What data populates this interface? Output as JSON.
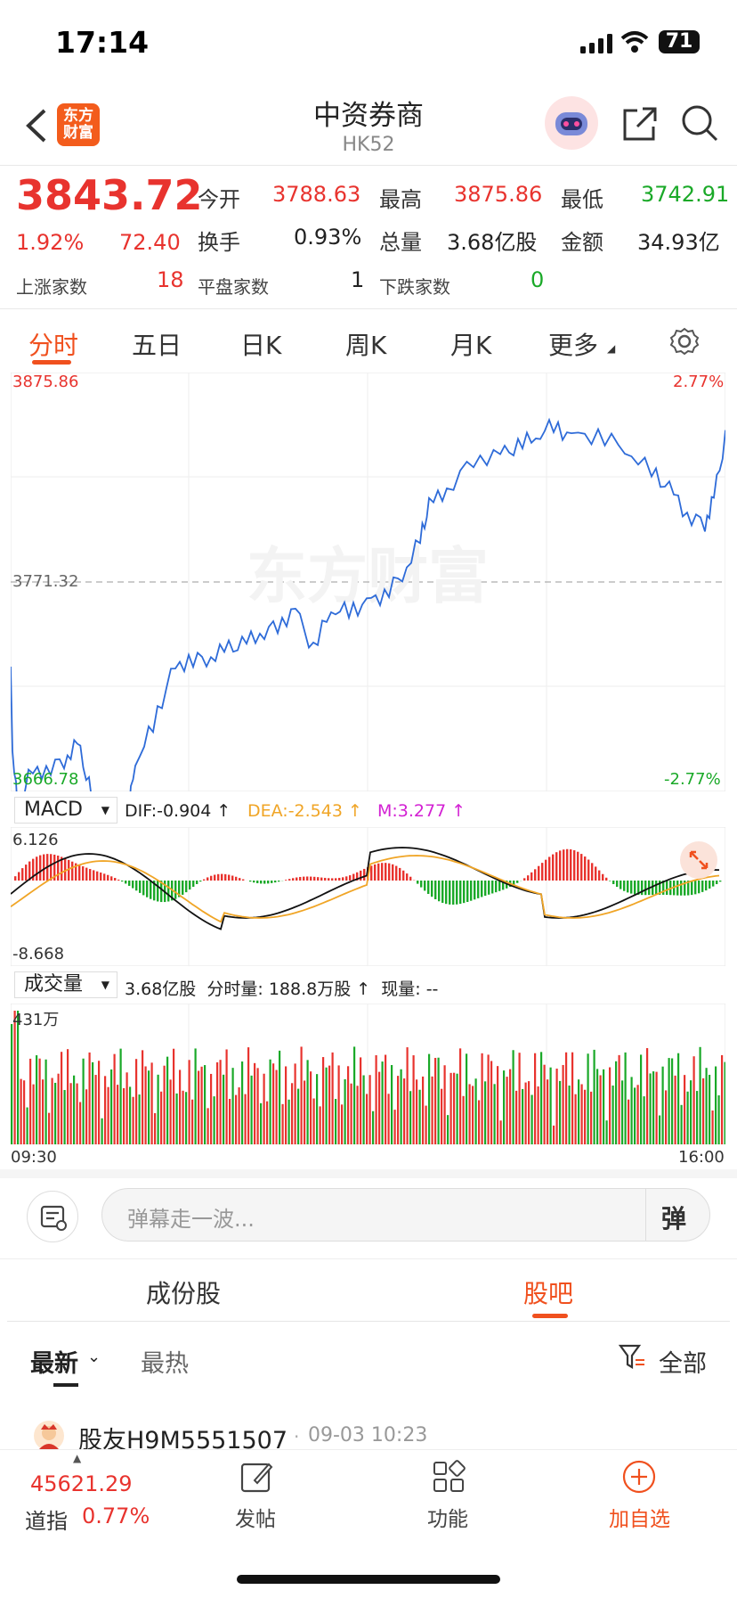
{
  "status": {
    "time": "17:14",
    "battery": "71"
  },
  "header": {
    "logo": "东方\n财富",
    "title": "中资券商",
    "code": "HK52"
  },
  "quote": {
    "price": "3843.72",
    "change_pct": "1.92%",
    "change": "72.40",
    "open_label": "今开",
    "open": "3788.63",
    "high_label": "最高",
    "high": "3875.86",
    "low_label": "最低",
    "low": "3742.91",
    "turnover_label": "换手",
    "turnover": "0.93%",
    "volume_label": "总量",
    "volume": "3.68亿股",
    "amount_label": "金额",
    "amount": "34.93亿",
    "up_label": "上涨家数",
    "up": "18",
    "flat_label": "平盘家数",
    "flat": "1",
    "down_label": "下跌家数",
    "down": "0"
  },
  "tabs": [
    "分时",
    "五日",
    "日K",
    "周K",
    "月K",
    "更多"
  ],
  "chart_data": {
    "type": "line",
    "y_top": "3875.86",
    "y_mid": "3771.32",
    "y_bottom": "3666.78",
    "pct_top": "2.77%",
    "pct_bottom": "-2.77%",
    "watermark": "东方财富",
    "macd": {
      "label": "MACD",
      "dif": "DIF:-0.904 ↑",
      "dea": "DEA:-2.543 ↑",
      "m": "M:3.277 ↑",
      "top": "6.126",
      "bottom": "-8.668"
    },
    "volume": {
      "label": "成交量",
      "info": "3.68亿股  分时量: 188.8万股 ↑  现量: --",
      "top": "431万"
    },
    "x_start": "09:30",
    "x_end": "16:00"
  },
  "comment": {
    "placeholder": "弹幕走一波...",
    "danmu": "弹"
  },
  "section_tabs": [
    "成份股",
    "股吧"
  ],
  "sub_tabs": {
    "latest": "最新",
    "hot": "最热",
    "all": "全部"
  },
  "post": {
    "user": "股友H9M5551507",
    "time": "09-03 10:23"
  },
  "bottom": {
    "index_value": "45621.29",
    "index_name": "道指",
    "index_pct": "0.77%",
    "post": "发帖",
    "func": "功能",
    "add": "加自选"
  }
}
